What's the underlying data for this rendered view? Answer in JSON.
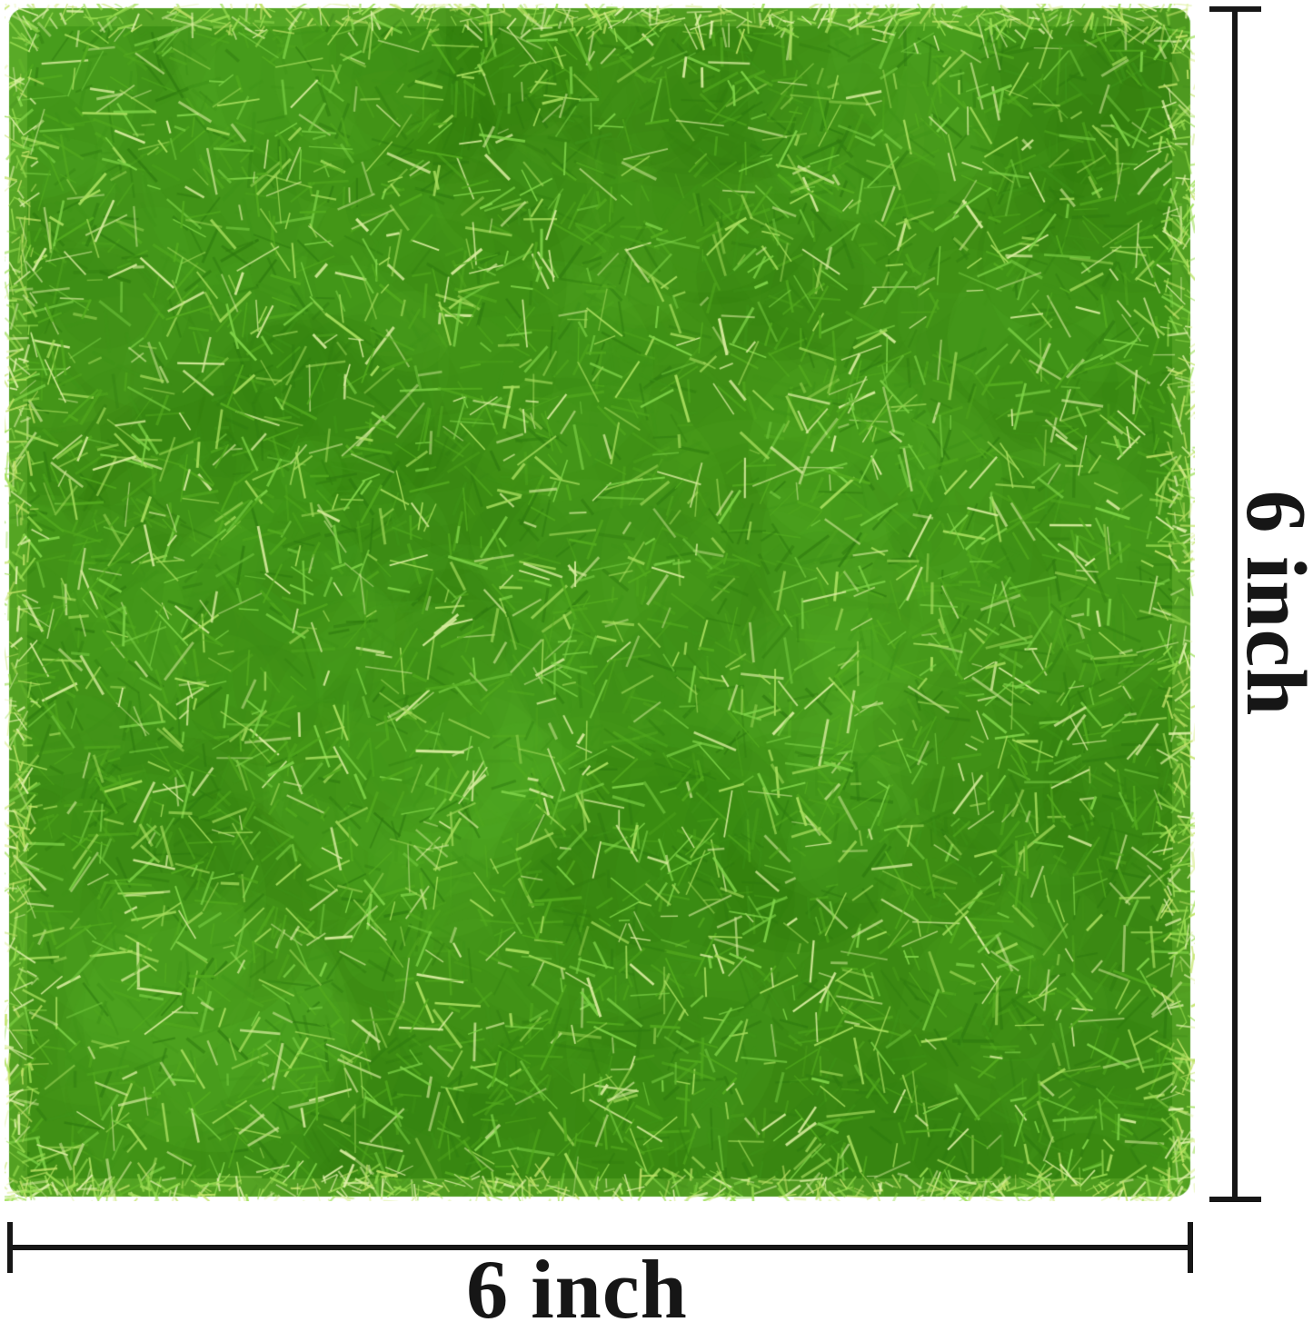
{
  "figure": {
    "type": "product-dimension-diagram",
    "background_color": "#ffffff"
  },
  "product": {
    "name": "artificial grass mat",
    "shape": "square"
  },
  "dimensions": {
    "width_label": "6 inch",
    "height_label": "6 inch",
    "line_color": "#161616",
    "text_color": "#161616"
  },
  "grass": {
    "base_color": "#3f8f16",
    "shadow_color": "#2c7409",
    "highlight_color": "#5ab529",
    "blade_palette": [
      "#2e7a0f",
      "#3f9318",
      "#54ab1f",
      "#7ed348",
      "#a8de5e",
      "#d9eda0"
    ],
    "fringe_palette": [
      "#9ade52",
      "#c3e46a",
      "#e4f3ae"
    ]
  }
}
